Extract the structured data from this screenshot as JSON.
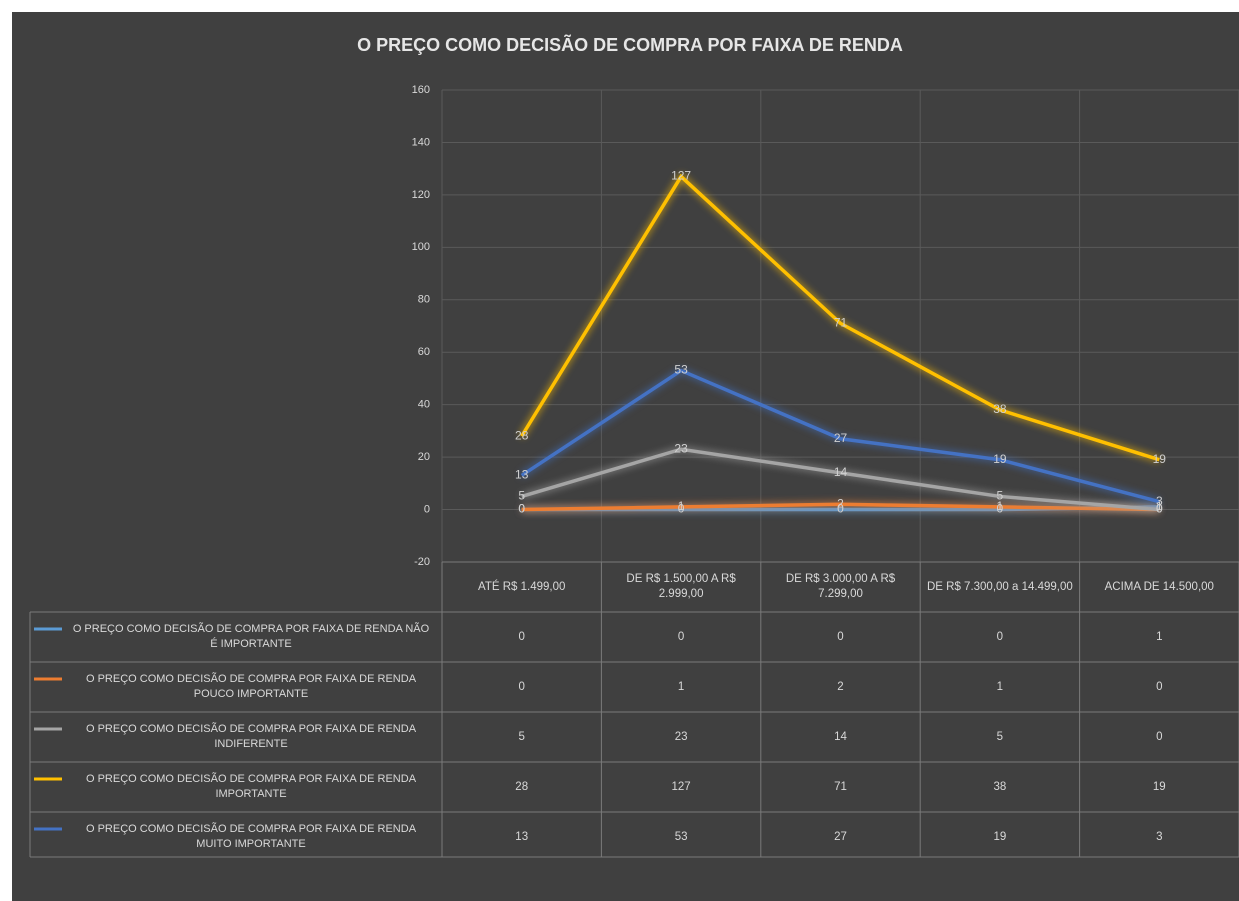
{
  "chart_data": {
    "type": "line",
    "title": "O PREÇO COMO DECISÃO DE COMPRA POR FAIXA DE RENDA",
    "categories": [
      "ATÉ R$ 1.499,00",
      "DE R$ 1.500,00 A R$ 2.999,00",
      "DE R$ 3.000,00 A R$ 7.299,00",
      "DE R$ 7.300,00 a 14.499,00",
      "ACIMA DE 14.500,00"
    ],
    "series": [
      {
        "name": "O PREÇO COMO DECISÃO DE COMPRA POR FAIXA DE RENDA NÃO É IMPORTANTE",
        "color": "#5b9bd5",
        "values": [
          0,
          0,
          0,
          0,
          1
        ]
      },
      {
        "name": "O PREÇO COMO DECISÃO DE COMPRA POR FAIXA DE RENDA POUCO IMPORTANTE",
        "color": "#ed7d31",
        "values": [
          0,
          1,
          2,
          1,
          0
        ]
      },
      {
        "name": "O PREÇO COMO DECISÃO DE COMPRA POR FAIXA DE RENDA INDIFERENTE",
        "color": "#a5a5a5",
        "values": [
          5,
          23,
          14,
          5,
          0
        ]
      },
      {
        "name": "O PREÇO COMO DECISÃO DE COMPRA POR FAIXA DE RENDA IMPORTANTE",
        "color": "#ffc000",
        "values": [
          28,
          127,
          71,
          38,
          19
        ]
      },
      {
        "name": "O PREÇO COMO DECISÃO DE COMPRA POR FAIXA DE RENDA MUITO IMPORTANTE",
        "color": "#4472c4",
        "values": [
          13,
          53,
          27,
          19,
          3
        ]
      }
    ],
    "ylim": [
      -20,
      160
    ],
    "yticks": [
      -20,
      0,
      20,
      40,
      60,
      80,
      100,
      120,
      140,
      160
    ],
    "grid": true
  }
}
